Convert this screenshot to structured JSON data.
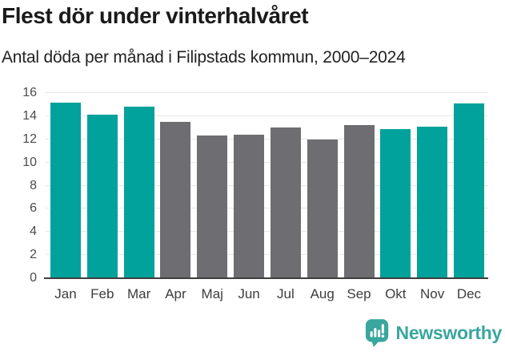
{
  "header": {
    "title": "Flest dör under vinterhalvåret",
    "subtitle": "Antal döda per månad i Filipstads kommun, 2000–2024"
  },
  "chart_data": {
    "type": "bar",
    "title": "Flest dör under vinterhalvåret",
    "subtitle": "Antal döda per månad i Filipstads kommun, 2000–2024",
    "categories": [
      "Jan",
      "Feb",
      "Mar",
      "Apr",
      "Maj",
      "Jun",
      "Jul",
      "Aug",
      "Sep",
      "Okt",
      "Nov",
      "Dec"
    ],
    "values": [
      15.2,
      14.1,
      14.8,
      13.5,
      12.3,
      12.4,
      13.0,
      12.0,
      13.2,
      12.9,
      13.1,
      15.1
    ],
    "bar_colors": [
      "teal",
      "teal",
      "teal",
      "gray",
      "gray",
      "gray",
      "gray",
      "gray",
      "gray",
      "teal",
      "teal",
      "teal"
    ],
    "colors": {
      "teal": "#00a29b",
      "gray": "#6d6d72"
    },
    "xlabel": "",
    "ylabel": "",
    "ylim": [
      0,
      16
    ],
    "yticks": [
      0,
      2,
      4,
      6,
      8,
      10,
      12,
      14,
      16
    ],
    "grid": true,
    "legend": "none"
  },
  "footer": {
    "brand": "Newsworthy",
    "logo_icon": "newsworthy-speech-bubble-chart-icon",
    "brand_color": "#3aa69e"
  }
}
